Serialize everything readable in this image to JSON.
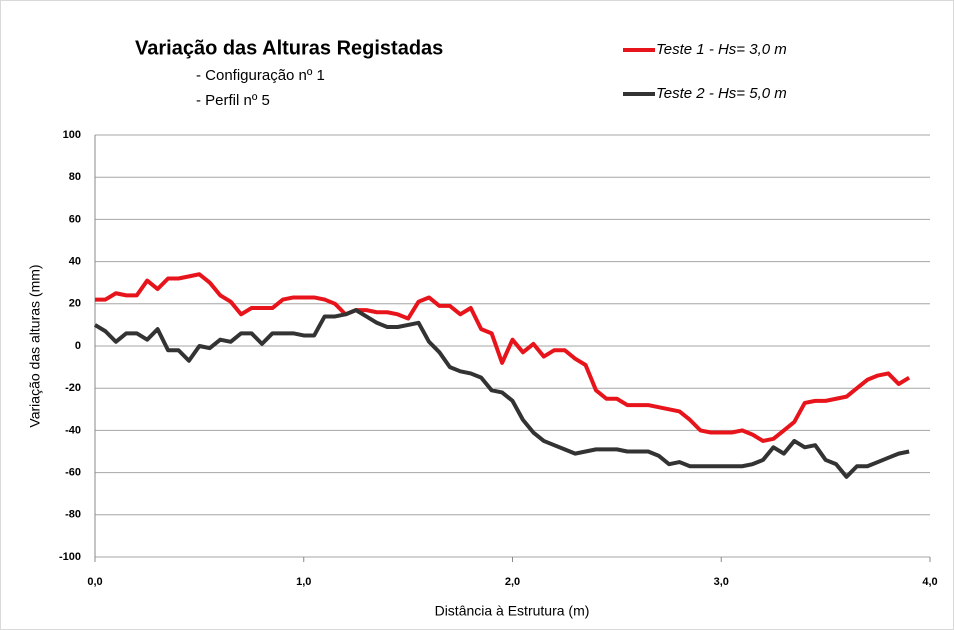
{
  "chart_data": {
    "type": "line",
    "title": "Variação das Alturas Registadas",
    "subtitle": [
      "- Configuração nº 1",
      "- Perfil nº 5"
    ],
    "xlabel": "Distância à Estrutura (m)",
    "ylabel": "Variação das alturas (mm)",
    "x": [
      0,
      0.05,
      0.1,
      0.15,
      0.2,
      0.25,
      0.3,
      0.35,
      0.4,
      0.45,
      0.5,
      0.55,
      0.6,
      0.65,
      0.7,
      0.75,
      0.8,
      0.85,
      0.9,
      0.95,
      1.0,
      1.05,
      1.1,
      1.15,
      1.2,
      1.25,
      1.3,
      1.35,
      1.4,
      1.45,
      1.5,
      1.55,
      1.6,
      1.65,
      1.7,
      1.75,
      1.8,
      1.85,
      1.9,
      1.95,
      2.0,
      2.05,
      2.1,
      2.15,
      2.2,
      2.25,
      2.3,
      2.35,
      2.4,
      2.45,
      2.5,
      2.55,
      2.6,
      2.65,
      2.7,
      2.75,
      2.8,
      2.85,
      2.9,
      2.95,
      3.0,
      3.05,
      3.1,
      3.15,
      3.2,
      3.25,
      3.3,
      3.35,
      3.4,
      3.45,
      3.5,
      3.55,
      3.6,
      3.65,
      3.7,
      3.75,
      3.8,
      3.85,
      3.9
    ],
    "series": [
      {
        "name": "Teste 1 - Hs= 3,0 m",
        "color": "#e8141b",
        "values": [
          22,
          22,
          25,
          24,
          24,
          31,
          27,
          32,
          32,
          33,
          34,
          30,
          24,
          21,
          15,
          18,
          18,
          18,
          22,
          23,
          23,
          23,
          22,
          20,
          15,
          17,
          17,
          16,
          16,
          15,
          13,
          21,
          23,
          19,
          19,
          15,
          18,
          8,
          6,
          -8,
          3,
          -3,
          1,
          -5,
          -2,
          -2,
          -6,
          -9,
          -21,
          -25,
          -25,
          -28,
          -28,
          -28,
          -29,
          -30,
          -31,
          -35,
          -40,
          -41,
          -41,
          -41,
          -40,
          -42,
          -45,
          -44,
          -40,
          -36,
          -27,
          -26,
          -26,
          -25,
          -24,
          -20,
          -16,
          -14,
          -13,
          -18,
          -15
        ]
      },
      {
        "name": "Teste 2 - Hs= 5,0 m",
        "color": "#333333",
        "values": [
          10,
          7,
          2,
          6,
          6,
          3,
          8,
          -2,
          -2,
          -7,
          0,
          -1,
          3,
          2,
          6,
          6,
          1,
          6,
          6,
          6,
          5,
          5,
          14,
          14,
          15,
          17,
          14,
          11,
          9,
          9,
          10,
          11,
          2,
          -3,
          -10,
          -12,
          -13,
          -15,
          -21,
          -22,
          -26,
          -35,
          -41,
          -45,
          -47,
          -49,
          -51,
          -50,
          -49,
          -49,
          -49,
          -50,
          -50,
          -50,
          -52,
          -56,
          -55,
          -57,
          -57,
          -57,
          -57,
          -57,
          -57,
          -56,
          -54,
          -48,
          -51,
          -45,
          -48,
          -47,
          -54,
          -56,
          -62,
          -57,
          -57,
          -55,
          -53,
          -51,
          -50
        ]
      }
    ],
    "xlim": [
      0,
      4
    ],
    "xticks": [
      {
        "value": 0,
        "label": "0,0"
      },
      {
        "value": 1,
        "label": "1,0"
      },
      {
        "value": 2,
        "label": "2,0"
      },
      {
        "value": 3,
        "label": "3,0"
      },
      {
        "value": 4,
        "label": "4,0"
      }
    ],
    "ylim": [
      -100,
      100
    ],
    "yticks": [
      -100,
      -80,
      -60,
      -40,
      -20,
      0,
      20,
      40,
      60,
      80,
      100
    ],
    "grid": true
  }
}
